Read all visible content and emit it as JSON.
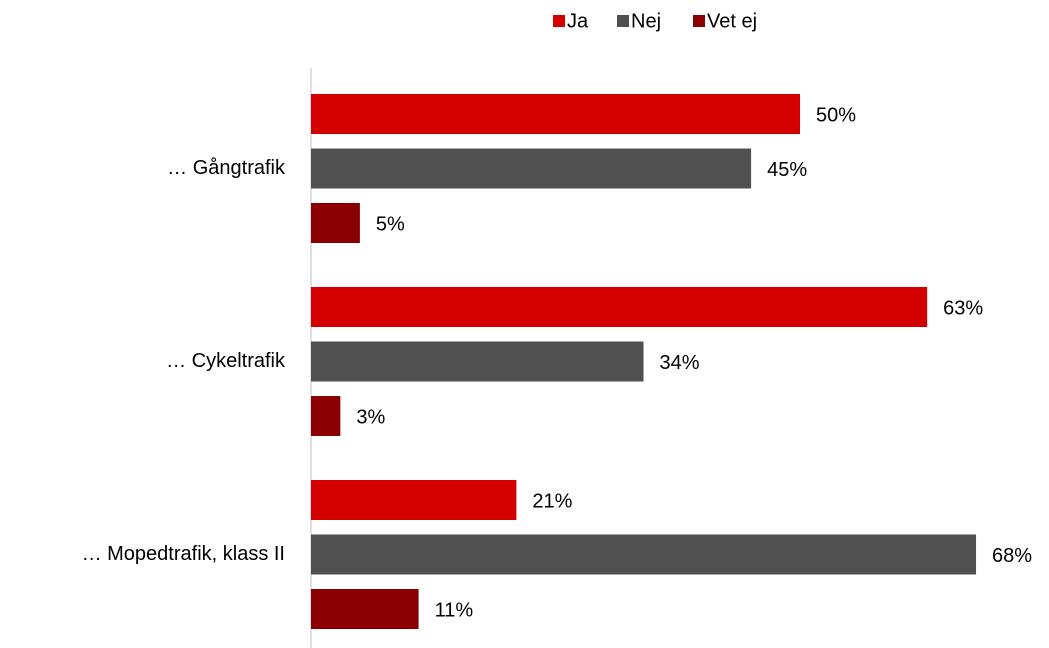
{
  "chart_data": {
    "type": "bar",
    "orientation": "horizontal",
    "categories": [
      "… Gångtrafik",
      "… Cykeltrafik",
      "… Mopedtrafik, klass II"
    ],
    "series": [
      {
        "name": "Ja",
        "color": "#d40000",
        "values": [
          50,
          63,
          21
        ],
        "value_labels": [
          "50%",
          "63%",
          "21%"
        ]
      },
      {
        "name": "Nej",
        "color": "#505050",
        "values": [
          45,
          34,
          68
        ],
        "value_labels": [
          "45%",
          "34%",
          "68%"
        ]
      },
      {
        "name": "Vet ej",
        "color": "#8b0000",
        "values": [
          5,
          3,
          11
        ],
        "value_labels": [
          "5%",
          "3%",
          "11%"
        ]
      }
    ],
    "legend": "top"
  }
}
